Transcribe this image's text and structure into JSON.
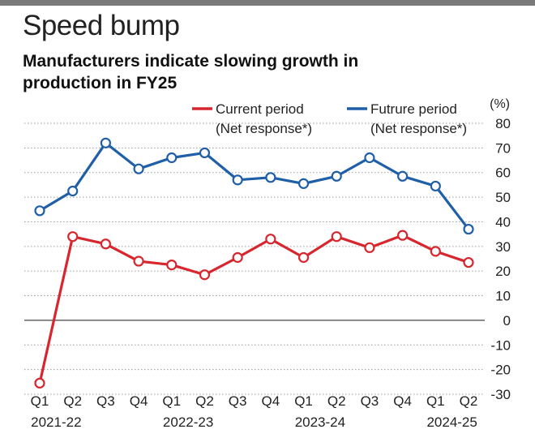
{
  "header": {
    "kicker": "Speed bump",
    "title": "Manufacturers indicate slowing growth in production in FY25"
  },
  "chart_data": {
    "type": "line",
    "y_unit": "(%)",
    "ylim": [
      -30,
      80
    ],
    "yticks": [
      80,
      70,
      60,
      50,
      40,
      30,
      20,
      10,
      0,
      -10,
      -20,
      -30
    ],
    "grid": "dotted horizontal",
    "legend_position": "top",
    "categories": [
      "Q1",
      "Q2",
      "Q3",
      "Q4",
      "Q1",
      "Q2",
      "Q3",
      "Q4",
      "Q1",
      "Q2",
      "Q3",
      "Q4",
      "Q1",
      "Q2"
    ],
    "year_labels": [
      {
        "label": "2021-22",
        "index": 0.5
      },
      {
        "label": "2022-23",
        "index": 4.5
      },
      {
        "label": "2023-24",
        "index": 8.5
      },
      {
        "label": "2024-25",
        "index": 12.5
      }
    ],
    "series": [
      {
        "name": "Current period",
        "sub": "(Net response*)",
        "color": "#d7262e",
        "values": [
          -25.5,
          34,
          31,
          24,
          22.5,
          18.5,
          25.5,
          33,
          25.5,
          34,
          29.5,
          34.5,
          28,
          23.5
        ]
      },
      {
        "name": "Futrure period",
        "sub": "(Net response*)",
        "color": "#1f5fa8",
        "values": [
          44.5,
          52.5,
          72,
          61.5,
          66,
          68,
          57,
          58,
          55.5,
          58.5,
          66,
          58.5,
          54.5,
          37
        ]
      }
    ]
  }
}
